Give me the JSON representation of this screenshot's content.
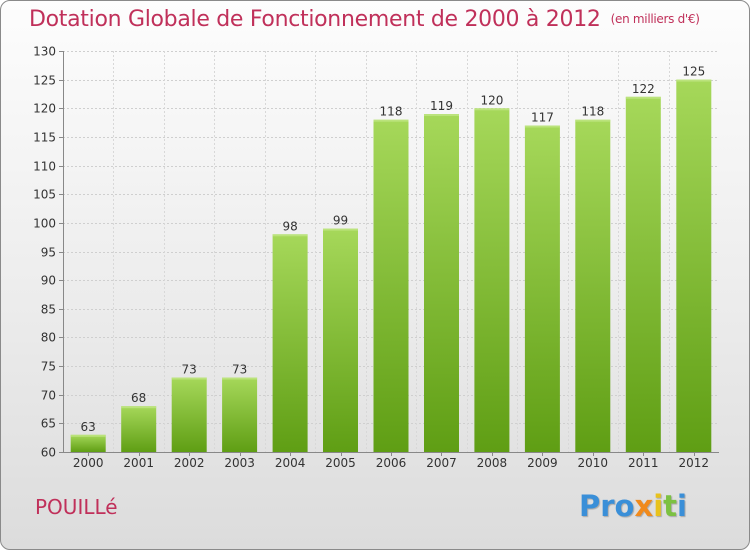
{
  "header": {
    "title": "Dotation Globale de Fonctionnement de 2000 à 2012",
    "subtitle": "(en milliers d'€)"
  },
  "commune": "POUILLé",
  "logo": {
    "text": "Proxiti"
  },
  "colors": {
    "title": "#c0305a",
    "bar_light": "#a6d85a",
    "bar_dark": "#5f9e14"
  },
  "chart_data": {
    "type": "bar",
    "title": "Dotation Globale de Fonctionnement de 2000 à 2012",
    "subtitle": "(en milliers d'€)",
    "categories": [
      "2000",
      "2001",
      "2002",
      "2003",
      "2004",
      "2005",
      "2006",
      "2007",
      "2008",
      "2009",
      "2010",
      "2011",
      "2012"
    ],
    "values": [
      63,
      68,
      73,
      73,
      98,
      99,
      118,
      119,
      120,
      117,
      118,
      122,
      125
    ],
    "ylim": [
      60,
      130
    ],
    "yticks": [
      60,
      65,
      70,
      75,
      80,
      85,
      90,
      95,
      100,
      105,
      110,
      115,
      120,
      125,
      130
    ],
    "grid": true,
    "xlabel": "",
    "ylabel": ""
  }
}
